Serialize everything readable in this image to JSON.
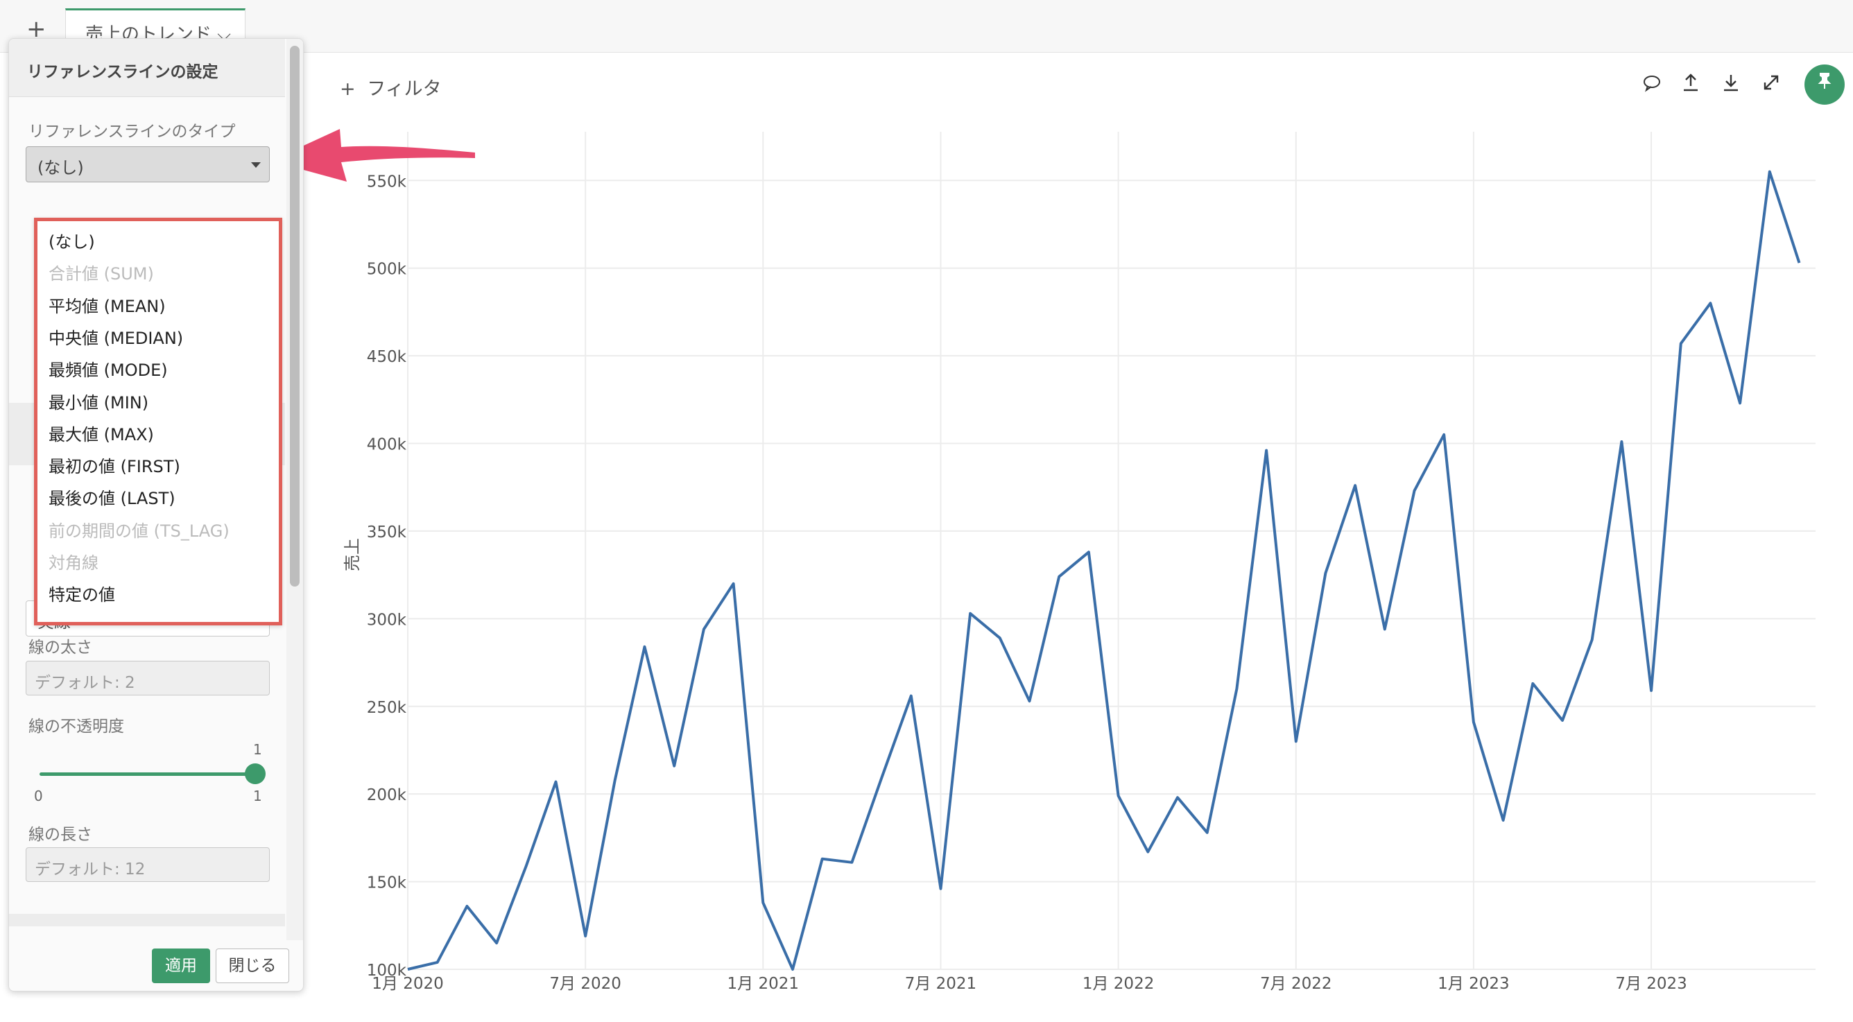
{
  "tabs": {
    "add_label": "+",
    "active_tab": "売上のトレンド ⌵"
  },
  "panel": {
    "title": "リファレンスラインの設定",
    "type_label": "リファレンスラインのタイプ",
    "type_value": "(なし)",
    "options": [
      {
        "label": "(なし)",
        "enabled": true
      },
      {
        "label": "合計値 (SUM)",
        "enabled": false
      },
      {
        "label": "平均値 (MEAN)",
        "enabled": true
      },
      {
        "label": "中央値 (MEDIAN)",
        "enabled": true
      },
      {
        "label": "最頻値 (MODE)",
        "enabled": true
      },
      {
        "label": "最小値 (MIN)",
        "enabled": true
      },
      {
        "label": "最大値 (MAX)",
        "enabled": true
      },
      {
        "label": "最初の値 (FIRST)",
        "enabled": true
      },
      {
        "label": "最後の値 (LAST)",
        "enabled": true
      },
      {
        "label": "前の期間の値 (TS_LAG)",
        "enabled": false
      },
      {
        "label": "対角線",
        "enabled": false
      },
      {
        "label": "特定の値",
        "enabled": true
      }
    ],
    "line_style_value": "実線",
    "width_label": "線の太さ",
    "width_placeholder": "デフォルト: 2",
    "opacity_label": "線の不透明度",
    "opacity_value": 1,
    "opacity_max_top": "1",
    "opacity_min": "0",
    "opacity_max": "1",
    "length_label": "線の長さ",
    "length_placeholder": "デフォルト: 12",
    "apply_label": "適用",
    "close_label": "閉じる"
  },
  "toolbar": {
    "filter_label": "フィルタ",
    "filter_plus": "+"
  },
  "icons": [
    "comment-icon",
    "upload-icon",
    "download-icon",
    "expand-icon",
    "pin-icon"
  ],
  "colors": {
    "accent": "#3d9a6b",
    "line": "#3a6ea8",
    "highlight": "#e0605a",
    "arrow": "#e84a6f"
  },
  "chart_data": {
    "type": "line",
    "title": "",
    "xlabel": "",
    "ylabel": "売上",
    "ylim": [
      100000,
      560000
    ],
    "y_ticks": [
      100000,
      150000,
      200000,
      250000,
      300000,
      350000,
      400000,
      450000,
      500000,
      550000
    ],
    "y_tick_labels": [
      "100k",
      "150k",
      "200k",
      "250k",
      "300k",
      "350k",
      "400k",
      "450k",
      "500k",
      "550k"
    ],
    "x_tick_labels": [
      "1月 2020",
      "7月 2020",
      "1月 2021",
      "7月 2021",
      "1月 2022",
      "7月 2022",
      "1月 2023",
      "7月 2023"
    ],
    "x_tick_months": [
      0,
      6,
      12,
      18,
      24,
      30,
      36,
      42
    ],
    "x_start": "2020-01",
    "series": [
      {
        "values": [
          100000,
          104000,
          136000,
          115000,
          159000,
          207000,
          119000,
          208000,
          284000,
          216000,
          294000,
          320000,
          138000,
          100000,
          163000,
          161000,
          209000,
          256000,
          146000,
          303000,
          289000,
          253000,
          324000,
          338000,
          199000,
          167000,
          198000,
          178000,
          260000,
          396000,
          230000,
          326000,
          376000,
          294000,
          373000,
          405000,
          241000,
          185000,
          263000,
          242000,
          288000,
          401000,
          259000,
          457000,
          480000,
          423000,
          555000,
          503000
        ]
      }
    ]
  }
}
